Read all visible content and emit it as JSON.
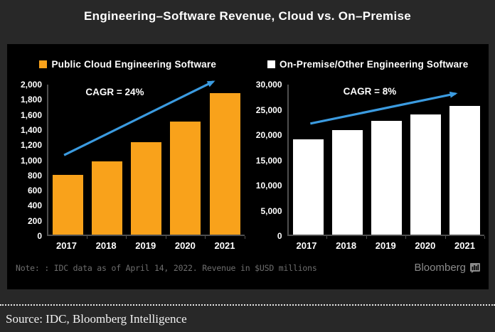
{
  "title": "Engineering–Software Revenue, Cloud vs. On–Premise",
  "note": "Note: : IDC data as of April 14, 2022. Revenue in $USD millions",
  "bloomberg_wordmark": "Bloomberg",
  "source": "Source: IDC, Bloomberg Intelligence",
  "colors": {
    "outer_background": "#282828",
    "panel_background": "#000000",
    "cloud_orange": "#F9A21B",
    "onprem_white": "#FFFFFF",
    "trend_arrow_blue": "#3B9BE0",
    "axis_gray": "#4f4f4f",
    "note_gray": "#6e6e6e",
    "bloomberg_gray": "#8a8a8a"
  },
  "chart_data": [
    {
      "type": "bar",
      "title": "Public Cloud Engineering Software",
      "annotation": "CAGR = 24%",
      "categories": [
        "2017",
        "2018",
        "2019",
        "2020",
        "2021"
      ],
      "values": [
        800,
        980,
        1230,
        1510,
        1890
      ],
      "bar_color": "#F9A21B",
      "ylabel": "",
      "xlabel": "",
      "ylim": [
        0,
        2000
      ],
      "yticks": [
        "2,000",
        "1,800",
        "1,600",
        "1,400",
        "1,200",
        "1,000",
        "800",
        "600",
        "400",
        "200",
        "0"
      ],
      "grid": false,
      "legend_position": "top",
      "trend_arrow": {
        "x1_pct": 8,
        "y1_pct": 47,
        "x2_pct": 84,
        "y2_pct": -2
      },
      "annotation_pos": {
        "left_pct": 19,
        "top_pct": 1.5
      }
    },
    {
      "type": "bar",
      "title": "On-Premise/Other Engineering Software",
      "annotation": "CAGR = 8%",
      "categories": [
        "2017",
        "2018",
        "2019",
        "2020",
        "2021"
      ],
      "values": [
        19000,
        20900,
        22800,
        24000,
        25800
      ],
      "bar_color": "#FFFFFF",
      "ylabel": "",
      "xlabel": "",
      "ylim": [
        0,
        30000
      ],
      "yticks": [
        "30,000",
        "25,000",
        "20,000",
        "15,000",
        "10,000",
        "5,000",
        "0"
      ],
      "grid": false,
      "legend_position": "top",
      "trend_arrow": {
        "x1_pct": 11,
        "y1_pct": 26,
        "x2_pct": 85,
        "y2_pct": 6
      },
      "annotation_pos": {
        "left_pct": 28,
        "top_pct": 1
      }
    }
  ]
}
